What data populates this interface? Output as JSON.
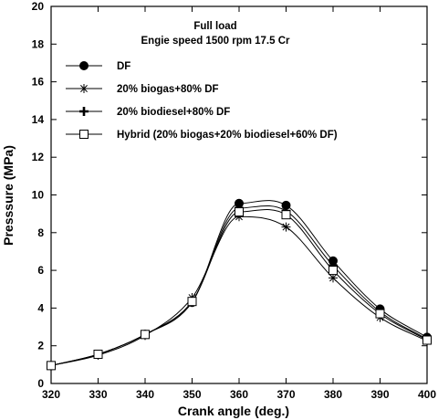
{
  "chart_data": {
    "type": "line",
    "title": "",
    "annotations": [
      "Full load",
      "Engie speed 1500 rpm  17.5 Cr"
    ],
    "xlabel": "Crank angle (deg.)",
    "ylabel": "Presssure (MPa)",
    "xlim": [
      320,
      400
    ],
    "ylim": [
      0,
      20
    ],
    "xticks": [
      320,
      330,
      340,
      350,
      360,
      370,
      380,
      390,
      400
    ],
    "yticks": [
      0,
      2,
      4,
      6,
      8,
      10,
      12,
      14,
      16,
      18,
      20
    ],
    "grid": false,
    "legend_position": "top-left",
    "x": [
      320,
      330,
      340,
      350,
      360,
      370,
      380,
      390,
      400
    ],
    "series": [
      {
        "name": "DF",
        "marker": "filled-circle",
        "values": [
          0.95,
          1.55,
          2.6,
          4.3,
          9.55,
          9.45,
          6.5,
          3.95,
          2.45
        ]
      },
      {
        "name": "20% biogas+80% DF",
        "marker": "asterisk",
        "values": [
          0.95,
          1.5,
          2.55,
          4.55,
          8.85,
          8.3,
          5.6,
          3.5,
          2.25
        ]
      },
      {
        "name": "20% biodiesel+80% DF",
        "marker": "plus",
        "values": [
          0.95,
          1.55,
          2.6,
          4.35,
          9.3,
          9.15,
          6.25,
          3.8,
          2.35
        ]
      },
      {
        "name": "Hybrid (20% biogas+20% biodiesel+60% DF)",
        "marker": "open-square",
        "values": [
          0.95,
          1.55,
          2.6,
          4.35,
          9.1,
          8.95,
          6.0,
          3.7,
          2.3
        ]
      }
    ]
  }
}
